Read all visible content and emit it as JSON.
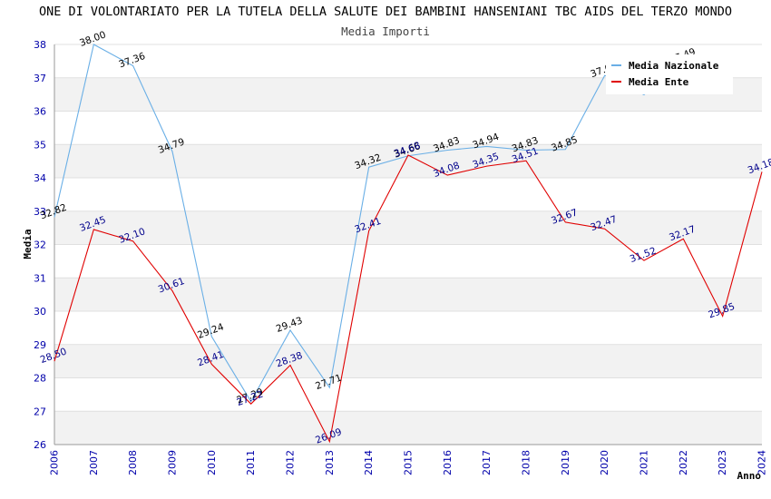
{
  "title": "ONE DI VOLONTARIATO PER LA TUTELA DELLA SALUTE DEI BAMBINI HANSENIANI TBC AIDS DEL TERZO MONDO",
  "subtitle": "Media Importi",
  "legend": [
    {
      "name": "Media Nazionale",
      "color": "#6aafe6"
    },
    {
      "name": "Media Ente",
      "color": "#e00000"
    }
  ],
  "chart_data": {
    "type": "line",
    "title": "ONE DI VOLONTARIATO PER LA TUTELA DELLA SALUTE DEI BAMBINI HANSENIANI TBC AIDS DEL TERZO MONDO",
    "subtitle": "Media Importi",
    "xlabel": "Anno",
    "ylabel": "Media",
    "ylim": [
      26,
      38
    ],
    "yticks": [
      26,
      27,
      28,
      29,
      30,
      31,
      32,
      33,
      34,
      35,
      36,
      37,
      38
    ],
    "categories": [
      "2006",
      "2007",
      "2008",
      "2009",
      "2010",
      "2011",
      "2012",
      "2013",
      "2014",
      "2015",
      "2016",
      "2017",
      "2018",
      "2019",
      "2020",
      "2021",
      "2022",
      "2023",
      "2024"
    ],
    "grid": true,
    "legend_position": "top-right",
    "series": [
      {
        "name": "Media Nazionale",
        "color": "#6aafe6",
        "label_color": "#000000",
        "values": [
          32.82,
          38.0,
          37.36,
          34.79,
          29.24,
          27.29,
          29.43,
          27.71,
          34.32,
          34.66,
          34.83,
          34.94,
          34.83,
          34.85,
          37.07,
          36.49,
          37.49,
          null,
          null
        ],
        "labels": [
          "32.82",
          "38.00",
          "37.36",
          "34.79",
          "29.24",
          "27.29",
          "29.43",
          "27.71",
          "34.32",
          "34.66",
          "34.83",
          "34.94",
          "34.83",
          "34.85",
          "37.07",
          "",
          "37.49",
          "",
          ""
        ]
      },
      {
        "name": "Media Ente",
        "color": "#e00000",
        "label_color": "#00008b",
        "values": [
          28.5,
          32.45,
          32.1,
          30.61,
          28.41,
          27.22,
          28.38,
          26.09,
          32.41,
          34.68,
          34.08,
          34.35,
          34.51,
          32.67,
          32.47,
          31.52,
          32.17,
          29.85,
          34.18
        ],
        "labels": [
          "28.50",
          "32.45",
          "32.10",
          "30.61",
          "28.41",
          "27.22",
          "28.38",
          "26.09",
          "32.41",
          "34.68",
          "34.08",
          "34.35",
          "34.51",
          "32.67",
          "32.47",
          "31.52",
          "32.17",
          "29.85",
          "34.18"
        ]
      }
    ]
  }
}
